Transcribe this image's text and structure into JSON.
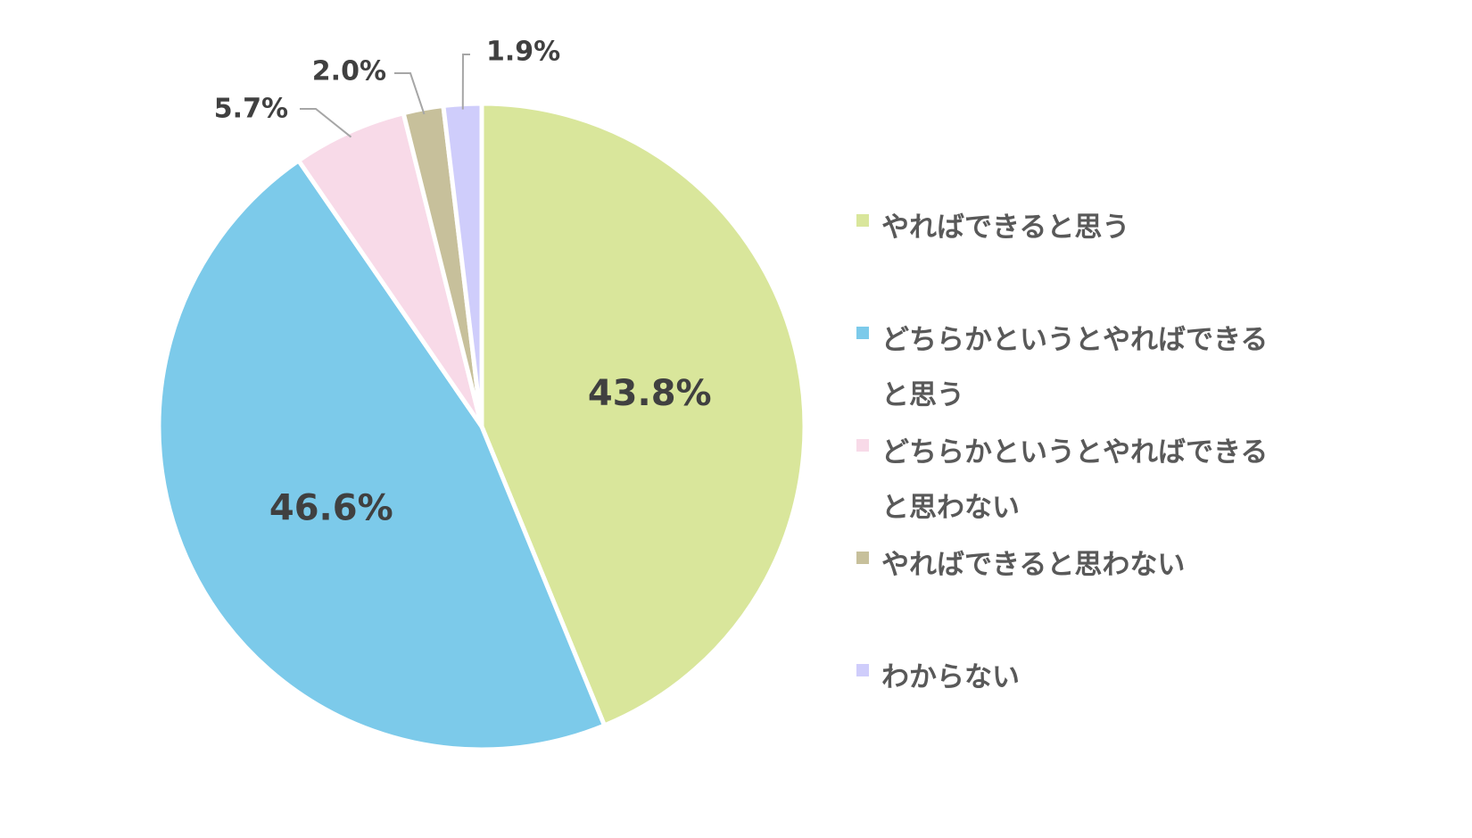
{
  "chart_data": {
    "type": "pie",
    "title": "",
    "start_angle_deg": 0,
    "direction": "clockwise",
    "legend_position": "right",
    "slices": [
      {
        "label": "やればできると思う",
        "value": 43.8,
        "display": "43.8%",
        "color": "#d9e69b"
      },
      {
        "label": "どちらかというとやればできる\nと思う",
        "value": 46.6,
        "display": "46.6%",
        "color": "#7ccaea"
      },
      {
        "label": "どちらかというとやればできる\nと思わない",
        "value": 5.7,
        "display": "5.7%",
        "color": "#f8dae8"
      },
      {
        "label": "やればできると思わない",
        "value": 2.0,
        "display": "2.0%",
        "color": "#c7c09b"
      },
      {
        "label": "わからない",
        "value": 1.9,
        "display": "1.9%",
        "color": "#cfcdfb"
      }
    ]
  }
}
